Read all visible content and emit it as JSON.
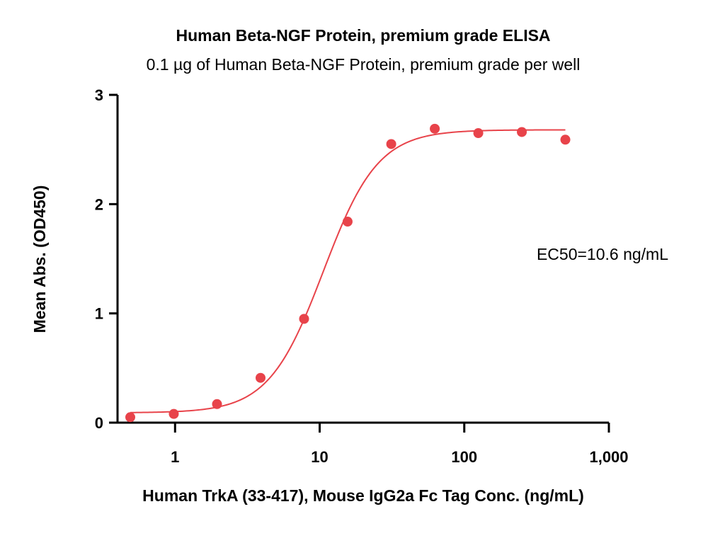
{
  "chart_data": {
    "type": "scatter",
    "title": "Human Beta-NGF Protein, premium grade ELISA",
    "subtitle": "0.1 µg of Human Beta-NGF Protein, premium grade per well",
    "xlabel": "Human TrkA (33-417), Mouse IgG2a Fc Tag Conc. (ng/mL)",
    "ylabel": "Mean Abs. (OD450)",
    "xscale": "log",
    "xlim": [
      0.4,
      1000
    ],
    "ylim": [
      0,
      3
    ],
    "xticks": [
      1,
      10,
      100,
      1000
    ],
    "xtick_labels": [
      "1",
      "10",
      "100",
      "1,000"
    ],
    "yticks": [
      0,
      1,
      2,
      3
    ],
    "ytick_labels": [
      "0",
      "1",
      "2",
      "3"
    ],
    "grid": false,
    "color": "#e8434a",
    "x": [
      0.49,
      0.98,
      1.95,
      3.9,
      7.8,
      15.6,
      31.25,
      62.5,
      125,
      250,
      500
    ],
    "y": [
      0.05,
      0.08,
      0.17,
      0.41,
      0.95,
      1.84,
      2.55,
      2.69,
      2.65,
      2.66,
      2.59
    ],
    "fit": {
      "model": "4PL",
      "bottom": 0.09,
      "top": 2.68,
      "ec50": 10.6,
      "hill": 2.3,
      "x_range": [
        0.49,
        500
      ]
    },
    "annotation": "EC50=10.6 ng/mL"
  }
}
